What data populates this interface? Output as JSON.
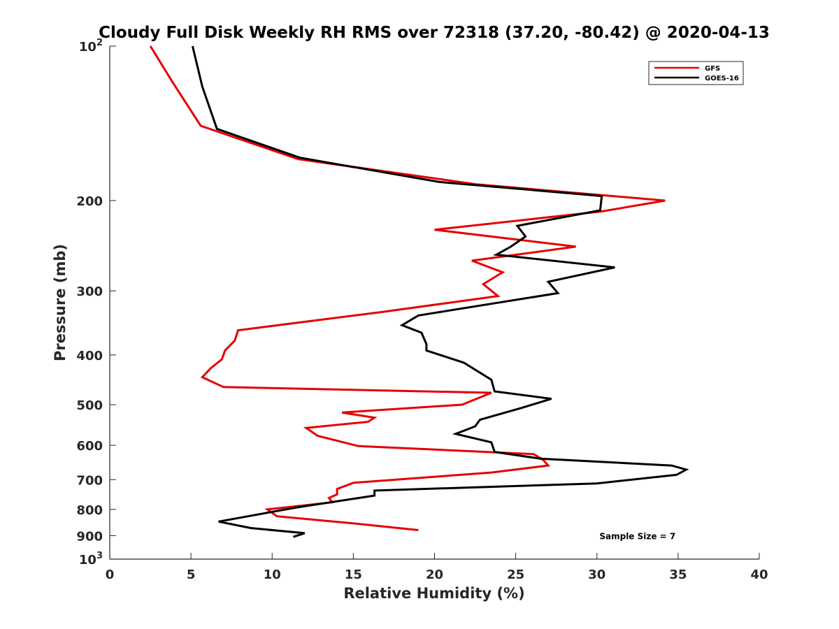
{
  "chart_data": {
    "type": "line",
    "title": "Cloudy Full Disk Weekly RH RMS over 72318 (37.20, -80.42) @ 2020-04-13",
    "xlabel": "Relative Humidity (%)",
    "ylabel": "Pressure (mb)",
    "xlim": [
      0,
      40
    ],
    "ylim": [
      100,
      1000
    ],
    "yscale": "log",
    "y_reversed": true,
    "xticks": [
      0,
      5,
      10,
      15,
      20,
      25,
      30,
      35,
      40
    ],
    "yticks": [
      {
        "value": 100,
        "base": "10",
        "exp": "2"
      },
      {
        "value": 200,
        "label": "200"
      },
      {
        "value": 300,
        "label": "300"
      },
      {
        "value": 400,
        "label": "400"
      },
      {
        "value": 500,
        "label": "500"
      },
      {
        "value": 600,
        "label": "600"
      },
      {
        "value": 700,
        "label": "700"
      },
      {
        "value": 800,
        "label": "800"
      },
      {
        "value": 900,
        "label": "900"
      },
      {
        "value": 1000,
        "base": "10",
        "exp": "3"
      }
    ],
    "legend_position": "top-right",
    "series": [
      {
        "name": "GFS",
        "color": "#e60000",
        "points": [
          [
            2.5,
            100
          ],
          [
            3.9,
            118
          ],
          [
            5.6,
            143
          ],
          [
            11.6,
            166
          ],
          [
            22.6,
            186
          ],
          [
            34.2,
            200
          ],
          [
            30.3,
            210
          ],
          [
            20.0,
            228
          ],
          [
            28.7,
            246
          ],
          [
            22.3,
            262
          ],
          [
            24.2,
            276
          ],
          [
            23.0,
            291
          ],
          [
            23.9,
            307
          ],
          [
            16.7,
            330
          ],
          [
            7.9,
            358
          ],
          [
            7.7,
            375
          ],
          [
            7.1,
            392
          ],
          [
            6.9,
            408
          ],
          [
            6.2,
            425
          ],
          [
            5.7,
            442
          ],
          [
            7.0,
            462
          ],
          [
            23.5,
            474
          ],
          [
            21.7,
            500
          ],
          [
            14.3,
            518
          ],
          [
            16.3,
            530
          ],
          [
            15.9,
            540
          ],
          [
            12.1,
            555
          ],
          [
            12.8,
            575
          ],
          [
            15.3,
            602
          ],
          [
            26.1,
            624
          ],
          [
            26.7,
            641
          ],
          [
            27.0,
            657
          ],
          [
            23.5,
            678
          ],
          [
            15.0,
            710
          ],
          [
            14.0,
            730
          ],
          [
            14.0,
            748
          ],
          [
            13.5,
            760
          ],
          [
            13.7,
            775
          ],
          [
            9.7,
            800
          ],
          [
            10.3,
            825
          ],
          [
            15.0,
            852
          ],
          [
            19.0,
            878
          ]
        ]
      },
      {
        "name": "GOES-16",
        "color": "#000000",
        "points": [
          [
            5.1,
            100
          ],
          [
            5.7,
            120
          ],
          [
            6.6,
            145
          ],
          [
            11.7,
            165
          ],
          [
            20.3,
            184
          ],
          [
            30.3,
            196
          ],
          [
            30.2,
            209
          ],
          [
            25.1,
            224
          ],
          [
            25.6,
            235
          ],
          [
            24.7,
            246
          ],
          [
            23.8,
            255
          ],
          [
            31.1,
            270
          ],
          [
            27.0,
            288
          ],
          [
            27.6,
            303
          ],
          [
            19.0,
            335
          ],
          [
            18.0,
            350
          ],
          [
            19.2,
            362
          ],
          [
            19.5,
            381
          ],
          [
            19.5,
            392
          ],
          [
            21.8,
            414
          ],
          [
            23.5,
            447
          ],
          [
            23.7,
            471
          ],
          [
            27.2,
            487
          ],
          [
            25.3,
            508
          ],
          [
            22.8,
            535
          ],
          [
            22.5,
            551
          ],
          [
            21.3,
            570
          ],
          [
            23.5,
            592
          ],
          [
            23.7,
            618
          ],
          [
            26.5,
            637
          ],
          [
            34.6,
            657
          ],
          [
            35.5,
            669
          ],
          [
            34.9,
            685
          ],
          [
            30.0,
            712
          ],
          [
            16.3,
            735
          ],
          [
            16.3,
            752
          ],
          [
            11.5,
            793
          ],
          [
            6.7,
            845
          ],
          [
            8.7,
            870
          ],
          [
            12.0,
            890
          ],
          [
            11.3,
            905
          ]
        ]
      }
    ],
    "annotations": [
      {
        "text": "Sample Size = 7",
        "x": 32.5,
        "y": 900
      }
    ]
  }
}
